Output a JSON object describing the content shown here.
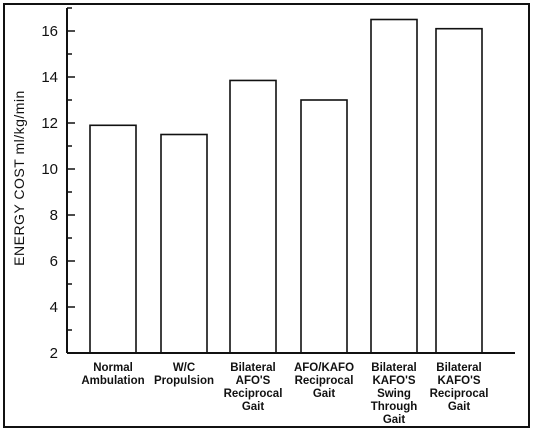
{
  "chart_data": {
    "type": "bar",
    "categories": [
      [
        "Normal",
        "Ambulation"
      ],
      [
        "W/C",
        "Propulsion"
      ],
      [
        "Bilateral",
        "AFO'S",
        "Reciprocal",
        "Gait"
      ],
      [
        "AFO/KAFO",
        "Reciprocal",
        "Gait"
      ],
      [
        "Bilateral",
        "KAFO'S",
        "Swing",
        "Through",
        "Gait"
      ],
      [
        "Bilateral",
        "KAFO'S",
        "Reciprocal",
        "Gait"
      ]
    ],
    "values": [
      11.9,
      11.5,
      13.85,
      13.0,
      16.5,
      16.1
    ],
    "title": "",
    "xlabel": "",
    "ylabel": "ENERGY COST  ml/kg/min",
    "ylim": [
      2,
      17
    ],
    "yticks": [
      2,
      4,
      6,
      8,
      10,
      12,
      14,
      16
    ],
    "grid": false,
    "colors": {
      "bar_fill": "#ffffff",
      "bar_stroke": "#111111",
      "axis": "#111111"
    }
  }
}
